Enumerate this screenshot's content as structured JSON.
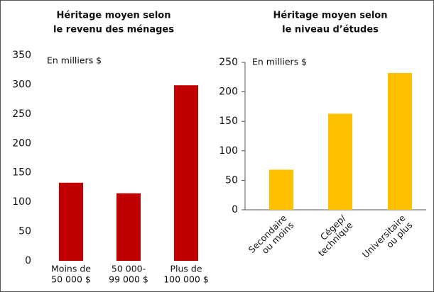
{
  "chart_data": [
    {
      "type": "bar",
      "title": [
        "Héritage moyen selon",
        "le revenu des ménages"
      ],
      "annotation": "En milliers $",
      "categories": [
        [
          "Moins de",
          "50 000 $"
        ],
        [
          "50 000-",
          "99 000 $"
        ],
        [
          "Plus de",
          "100 000 $"
        ]
      ],
      "values": [
        133,
        115,
        299
      ],
      "color": "#c00000",
      "ylim": [
        0,
        350
      ],
      "yticks": [
        0,
        50,
        100,
        150,
        200,
        250,
        300,
        350
      ],
      "axis_lines": false,
      "rotate_labels": false
    },
    {
      "type": "bar",
      "title": [
        "Héritage moyen selon",
        "le niveau d’études"
      ],
      "annotation": "En milliers $",
      "categories": [
        [
          "Secondaire",
          "ou moins"
        ],
        [
          "Cégep/",
          "technique"
        ],
        [
          "Universitaire",
          "ou plus"
        ]
      ],
      "values": [
        68,
        163,
        232
      ],
      "color": "#ffc000",
      "ylim": [
        0,
        250
      ],
      "yticks": [
        0,
        50,
        100,
        150,
        200,
        250
      ],
      "axis_lines": true,
      "rotate_labels": true
    }
  ]
}
